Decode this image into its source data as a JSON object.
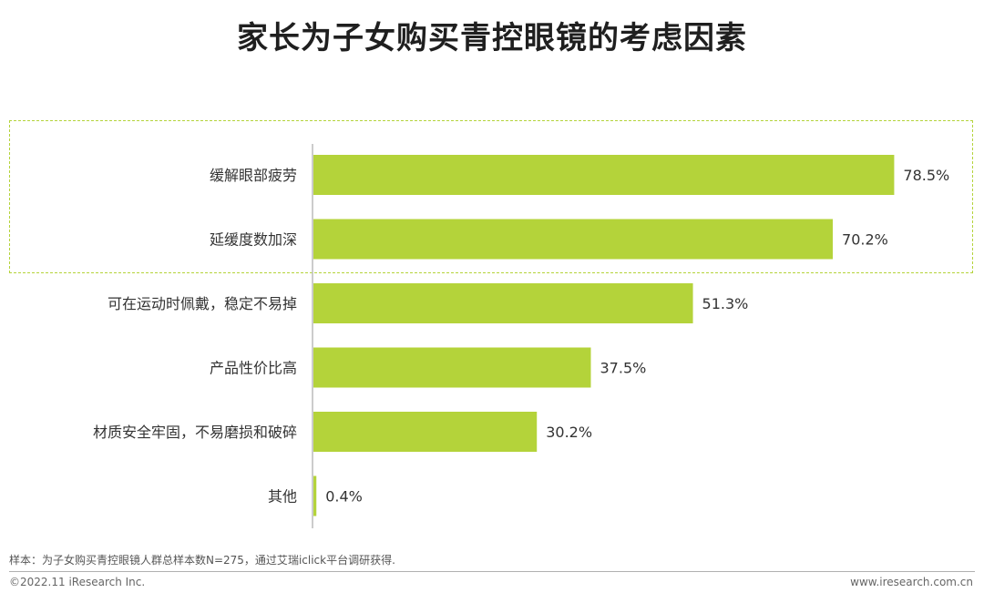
{
  "title": "家长为子女购买青控眼镜的考虑因素",
  "source": "样本：为子女购买青控眼镜人群总样本数N=275，通过艾瑞iclick平台调研获得.",
  "copyright": "©2022.11 iResearch Inc.",
  "website": "www.iresearch.com.cn",
  "colors": {
    "bar": "#b4d33a",
    "highlight_border": "#b4d33a",
    "axis": "#bbbbbb"
  },
  "chart_data": {
    "type": "bar",
    "orientation": "horizontal",
    "categories": [
      "缓解眼部疲劳",
      "延缓度数加深",
      "可在运动时佩戴，稳定不易掉",
      "产品性价比高",
      "材质安全牢固，不易磨损和破碎",
      "其他"
    ],
    "values": [
      78.5,
      70.2,
      51.3,
      37.5,
      30.2,
      0.4
    ],
    "value_labels": [
      "78.5%",
      "70.2%",
      "51.3%",
      "37.5%",
      "30.2%",
      "0.4%"
    ],
    "unit": "%",
    "xlim": [
      0,
      100
    ],
    "highlighted_categories": [
      "缓解眼部疲劳",
      "延缓度数加深"
    ],
    "grid": false,
    "legend": "none"
  }
}
